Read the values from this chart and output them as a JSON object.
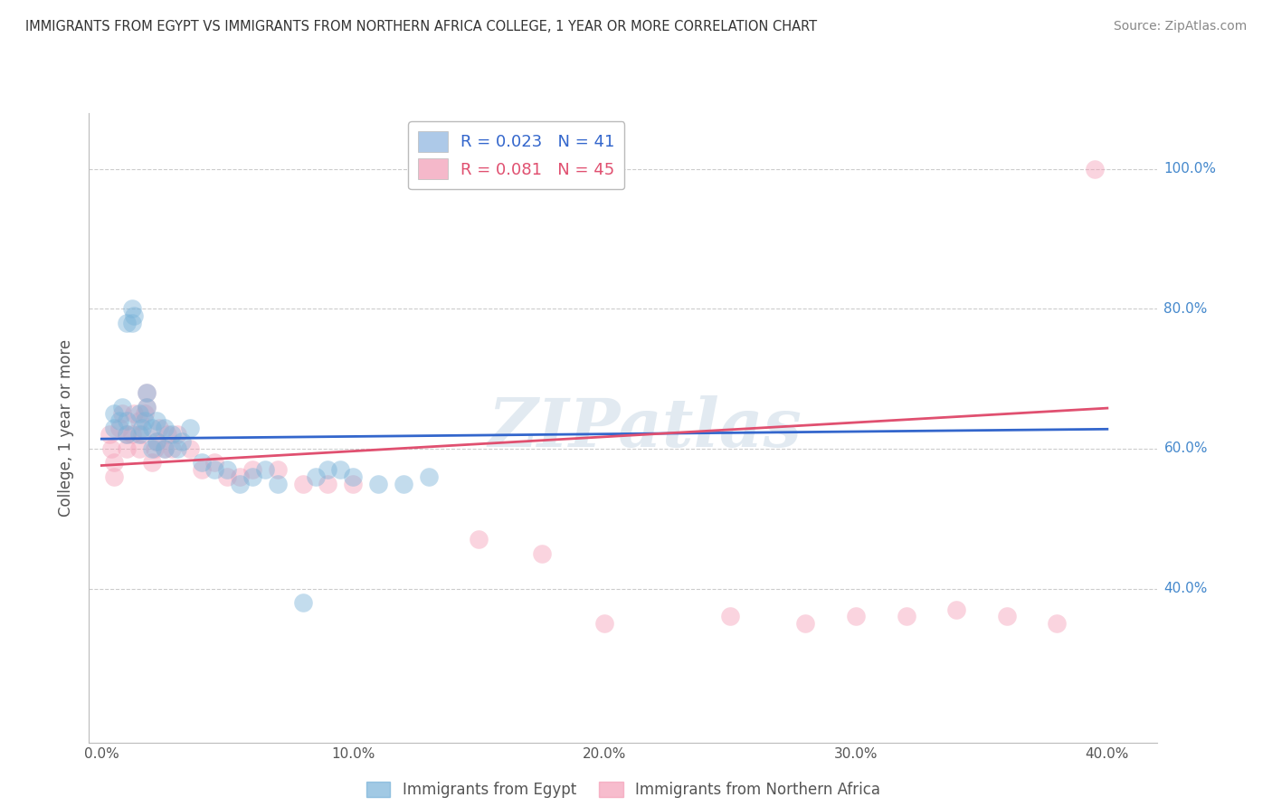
{
  "title": "IMMIGRANTS FROM EGYPT VS IMMIGRANTS FROM NORTHERN AFRICA COLLEGE, 1 YEAR OR MORE CORRELATION CHART",
  "source": "Source: ZipAtlas.com",
  "xlim": [
    -0.005,
    0.42
  ],
  "ylim": [
    0.18,
    1.08
  ],
  "xticks": [
    0.0,
    0.1,
    0.2,
    0.3,
    0.4
  ],
  "xtick_labels": [
    "0.0%",
    "10.0%",
    "20.0%",
    "30.0%",
    "40.0%"
  ],
  "right_yticks": [
    0.4,
    0.6,
    0.8,
    1.0
  ],
  "right_ytick_labels": [
    "40.0%",
    "60.0%",
    "80.0%",
    "100.0%"
  ],
  "legend_line1": "R = 0.023   N = 41",
  "legend_line2": "R = 0.081   N = 45",
  "legend_color1": "#adc9e8",
  "legend_color2": "#f5b8ca",
  "scatter_color_egypt": "#7ab3d9",
  "scatter_color_north_africa": "#f4a0b8",
  "trend_color_egypt": "#3366cc",
  "trend_color_north_africa": "#e05070",
  "watermark": "ZIPatlas",
  "egypt_x": [
    0.005,
    0.005,
    0.007,
    0.008,
    0.01,
    0.01,
    0.01,
    0.012,
    0.012,
    0.013,
    0.015,
    0.015,
    0.016,
    0.017,
    0.018,
    0.018,
    0.02,
    0.02,
    0.022,
    0.022,
    0.025,
    0.025,
    0.028,
    0.03,
    0.032,
    0.035,
    0.04,
    0.045,
    0.05,
    0.055,
    0.06,
    0.065,
    0.07,
    0.08,
    0.085,
    0.09,
    0.095,
    0.1,
    0.11,
    0.12,
    0.13
  ],
  "egypt_y": [
    0.63,
    0.65,
    0.64,
    0.66,
    0.62,
    0.64,
    0.78,
    0.78,
    0.8,
    0.79,
    0.62,
    0.65,
    0.63,
    0.64,
    0.66,
    0.68,
    0.6,
    0.63,
    0.61,
    0.64,
    0.6,
    0.63,
    0.62,
    0.6,
    0.61,
    0.63,
    0.58,
    0.57,
    0.57,
    0.55,
    0.56,
    0.57,
    0.55,
    0.38,
    0.56,
    0.57,
    0.57,
    0.56,
    0.55,
    0.55,
    0.56
  ],
  "north_africa_x": [
    0.003,
    0.004,
    0.005,
    0.005,
    0.007,
    0.008,
    0.01,
    0.01,
    0.012,
    0.013,
    0.015,
    0.015,
    0.016,
    0.017,
    0.018,
    0.018,
    0.02,
    0.021,
    0.022,
    0.023,
    0.025,
    0.026,
    0.028,
    0.03,
    0.035,
    0.04,
    0.045,
    0.05,
    0.055,
    0.06,
    0.07,
    0.08,
    0.09,
    0.1,
    0.15,
    0.175,
    0.2,
    0.25,
    0.28,
    0.3,
    0.32,
    0.34,
    0.36,
    0.38,
    0.395
  ],
  "north_africa_y": [
    0.62,
    0.6,
    0.58,
    0.56,
    0.63,
    0.65,
    0.6,
    0.62,
    0.62,
    0.65,
    0.6,
    0.64,
    0.62,
    0.65,
    0.66,
    0.68,
    0.58,
    0.6,
    0.61,
    0.63,
    0.6,
    0.62,
    0.6,
    0.62,
    0.6,
    0.57,
    0.58,
    0.56,
    0.56,
    0.57,
    0.57,
    0.55,
    0.55,
    0.55,
    0.47,
    0.45,
    0.35,
    0.36,
    0.35,
    0.36,
    0.36,
    0.37,
    0.36,
    0.35,
    1.0
  ],
  "trend_egypt_x0": 0.0,
  "trend_egypt_x1": 0.4,
  "trend_egypt_y0": 0.614,
  "trend_egypt_y1": 0.628,
  "trend_na_x0": 0.0,
  "trend_na_x1": 0.4,
  "trend_na_y0": 0.576,
  "trend_na_y1": 0.658
}
